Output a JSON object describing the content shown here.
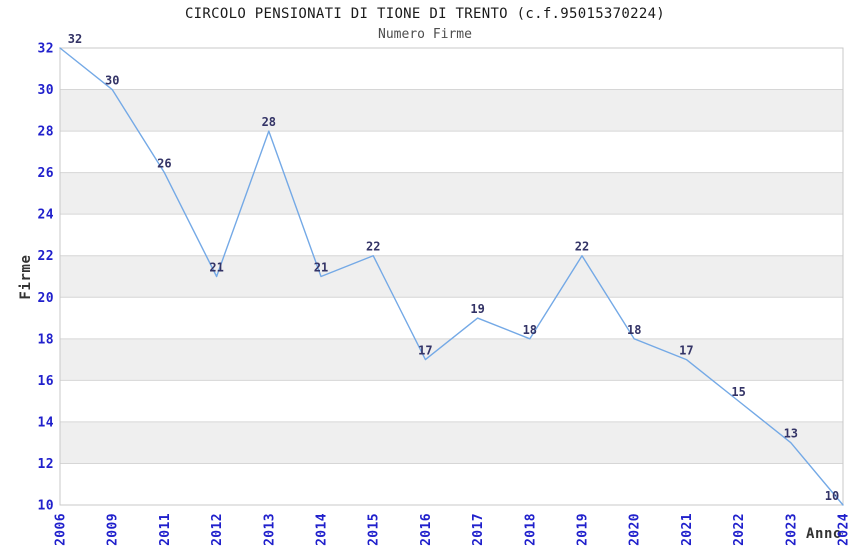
{
  "chart_data": {
    "type": "line",
    "title": "CIRCOLO PENSIONATI DI TIONE DI TRENTO (c.f.95015370224)",
    "subtitle": "Numero Firme",
    "xlabel": "Anno",
    "ylabel": "Firme",
    "categories": [
      "2006",
      "2009",
      "2011",
      "2012",
      "2013",
      "2014",
      "2015",
      "2016",
      "2017",
      "2018",
      "2019",
      "2020",
      "2021",
      "2022",
      "2023",
      "2024"
    ],
    "values": [
      32,
      30,
      26,
      21,
      28,
      21,
      22,
      17,
      19,
      18,
      22,
      18,
      17,
      15,
      13,
      10
    ],
    "ylim": [
      10,
      32
    ],
    "ytick_step": 2,
    "grid": "horizontal",
    "legend_position": "none",
    "point_labels_visible": true,
    "colors": {
      "line": "#74a9e6",
      "tick_label": "#2020cc",
      "data_label": "#333366",
      "band_fill": "#efefef",
      "gridline": "#d6d6d6",
      "plot_border": "#c9c9c9",
      "title_text": "#1a1a1a",
      "subtitle_text": "#4d4d4d",
      "axis_title_text": "#333333",
      "background": "#ffffff"
    }
  }
}
